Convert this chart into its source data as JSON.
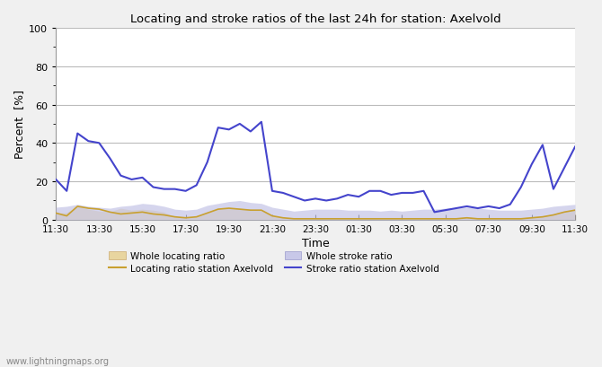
{
  "title": "Locating and stroke ratios of the last 24h for station: Axelvold",
  "xlabel": "Time",
  "ylabel": "Percent  [%]",
  "ylim": [
    0,
    100
  ],
  "yticks": [
    0,
    20,
    40,
    60,
    80,
    100
  ],
  "tick_labels": [
    "11:30",
    "13:30",
    "15:30",
    "17:30",
    "19:30",
    "21:30",
    "23:30",
    "01:30",
    "03:30",
    "05:30",
    "07:30",
    "09:30",
    "11:30"
  ],
  "watermark": "www.lightningmaps.org",
  "bg_color": "#f0f0f0",
  "plot_bg_color": "#ffffff",
  "grid_color": "#bbbbbb",
  "whole_locating_fill_color": "#e8d5a0",
  "whole_stroke_fill_color": "#c8c8e8",
  "locating_line_color": "#c8a030",
  "stroke_line_color": "#4444cc",
  "whole_locating": [
    3.5,
    3.8,
    7.0,
    5.5,
    4.5,
    4.2,
    6.0,
    5.0,
    5.5,
    5.0,
    4.0,
    1.5,
    1.0,
    1.5,
    4.0,
    5.5,
    6.0,
    6.0,
    5.5,
    5.0,
    2.0,
    1.0,
    0.5,
    1.0,
    1.0,
    0.5,
    0.5,
    0.5,
    1.0,
    1.0,
    0.5,
    0.5,
    0.5,
    0.5,
    0.5,
    1.0,
    1.0,
    1.0,
    1.5,
    1.0,
    1.0,
    0.5,
    0.5,
    1.0,
    1.5,
    2.0,
    3.0,
    4.5,
    5.5
  ],
  "whole_stroke": [
    6.5,
    7.0,
    8.0,
    7.0,
    6.5,
    6.0,
    7.0,
    7.5,
    8.5,
    8.0,
    7.0,
    5.5,
    5.0,
    5.5,
    7.5,
    8.5,
    9.5,
    10.0,
    9.0,
    8.5,
    6.5,
    5.5,
    4.5,
    5.0,
    5.5,
    5.5,
    5.5,
    5.0,
    5.0,
    5.0,
    4.5,
    5.0,
    4.5,
    5.0,
    5.5,
    5.5,
    6.0,
    6.0,
    6.5,
    6.0,
    5.5,
    5.0,
    5.0,
    5.0,
    5.5,
    6.0,
    7.0,
    7.5,
    8.0
  ],
  "locating_station": [
    3.5,
    2.0,
    7.0,
    6.0,
    5.5,
    4.0,
    3.0,
    3.5,
    4.0,
    3.0,
    2.5,
    1.5,
    1.0,
    1.5,
    3.5,
    5.5,
    6.0,
    5.5,
    5.0,
    5.0,
    2.0,
    1.0,
    0.5,
    0.5,
    0.5,
    0.5,
    0.5,
    0.5,
    0.5,
    0.5,
    0.5,
    0.5,
    0.5,
    0.5,
    0.5,
    0.5,
    0.5,
    0.5,
    1.0,
    0.5,
    0.5,
    0.5,
    0.5,
    0.5,
    1.0,
    1.5,
    2.5,
    4.0,
    5.0
  ],
  "stroke_station": [
    21,
    15,
    45,
    41,
    40,
    32,
    23,
    21,
    22,
    17,
    16,
    16,
    15,
    18,
    30,
    48,
    47,
    50,
    46,
    51,
    15,
    14,
    12,
    10,
    11,
    10,
    11,
    13,
    12,
    15,
    15,
    13,
    14,
    14,
    15,
    4,
    5,
    6,
    7,
    6,
    7,
    6,
    8,
    17,
    29,
    39,
    16,
    27,
    38
  ]
}
